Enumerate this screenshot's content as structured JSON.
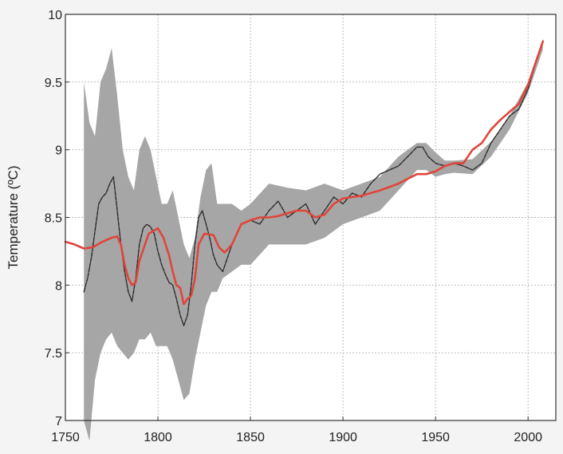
{
  "chart_data": {
    "type": "line",
    "title": "",
    "xlabel": "",
    "ylabel": "Temperature (ºC)",
    "xlim": [
      1750,
      2015
    ],
    "ylim": [
      7,
      10
    ],
    "xticks": [
      1750,
      1800,
      1850,
      1900,
      1950,
      2000
    ],
    "yticks": [
      7,
      7.5,
      8,
      8.5,
      9,
      9.5,
      10
    ],
    "xtick_labels": [
      "1750",
      "1800",
      "1850",
      "1900",
      "1950",
      "2000"
    ],
    "ytick_labels": [
      "7",
      "7.5",
      "8",
      "8.5",
      "9",
      "9.5",
      "10"
    ],
    "grid": true,
    "legend": "none",
    "colors": {
      "band": "#a6a6a6",
      "series_black": "#2a2a2a",
      "series_red": "#e0453a",
      "background": "#ffffff",
      "page": "#f4f4f4"
    },
    "uncertainty_band": {
      "x": [
        1760,
        1763,
        1766,
        1769,
        1772,
        1775,
        1778,
        1781,
        1784,
        1787,
        1790,
        1793,
        1796,
        1799,
        1802,
        1805,
        1808,
        1811,
        1814,
        1817,
        1820,
        1823,
        1826,
        1829,
        1832,
        1835,
        1840,
        1845,
        1850,
        1860,
        1870,
        1880,
        1890,
        1900,
        1910,
        1920,
        1930,
        1940,
        1945,
        1950,
        1955,
        1960,
        1970,
        1980,
        1990,
        2000,
        2005,
        2008
      ],
      "upper": [
        9.5,
        9.2,
        9.1,
        9.5,
        9.6,
        9.75,
        9.4,
        9.0,
        8.8,
        8.7,
        9.0,
        9.1,
        9.0,
        8.8,
        8.6,
        8.6,
        8.7,
        8.5,
        8.3,
        8.2,
        8.35,
        8.65,
        8.85,
        8.9,
        8.6,
        8.6,
        8.6,
        8.55,
        8.6,
        8.75,
        8.72,
        8.7,
        8.75,
        8.7,
        8.75,
        8.8,
        8.95,
        9.05,
        9.05,
        8.98,
        8.92,
        8.92,
        8.93,
        9.06,
        9.25,
        9.5,
        9.7,
        9.82
      ],
      "lower": [
        7.0,
        6.85,
        7.3,
        7.5,
        7.6,
        7.65,
        7.55,
        7.5,
        7.45,
        7.5,
        7.6,
        7.6,
        7.65,
        7.55,
        7.55,
        7.55,
        7.45,
        7.3,
        7.15,
        7.2,
        7.45,
        7.65,
        7.85,
        7.95,
        7.95,
        8.05,
        8.1,
        8.15,
        8.15,
        8.3,
        8.3,
        8.3,
        8.35,
        8.45,
        8.5,
        8.55,
        8.7,
        8.85,
        8.85,
        8.8,
        8.82,
        8.83,
        8.82,
        8.95,
        9.15,
        9.42,
        9.62,
        9.74
      ]
    },
    "series": [
      {
        "color": "#2a2a2a",
        "x": [
          1760,
          1762,
          1764,
          1766,
          1768,
          1770,
          1772,
          1774,
          1776,
          1778,
          1780,
          1782,
          1784,
          1786,
          1788,
          1790,
          1792,
          1794,
          1796,
          1798,
          1800,
          1802,
          1804,
          1806,
          1808,
          1810,
          1812,
          1814,
          1816,
          1818,
          1820,
          1822,
          1824,
          1826,
          1828,
          1830,
          1832,
          1835,
          1840,
          1845,
          1850,
          1855,
          1860,
          1865,
          1870,
          1875,
          1880,
          1885,
          1890,
          1895,
          1900,
          1905,
          1910,
          1915,
          1920,
          1925,
          1930,
          1935,
          1940,
          1943,
          1946,
          1950,
          1955,
          1960,
          1965,
          1970,
          1975,
          1980,
          1985,
          1990,
          1995,
          2000,
          2005,
          2008
        ],
        "y": [
          7.95,
          8.05,
          8.2,
          8.4,
          8.6,
          8.65,
          8.68,
          8.75,
          8.8,
          8.55,
          8.3,
          8.1,
          7.95,
          7.88,
          8.05,
          8.3,
          8.42,
          8.45,
          8.43,
          8.38,
          8.25,
          8.15,
          8.08,
          8.02,
          8.0,
          7.9,
          7.78,
          7.7,
          7.78,
          8.0,
          8.3,
          8.5,
          8.55,
          8.45,
          8.35,
          8.22,
          8.15,
          8.1,
          8.3,
          8.45,
          8.48,
          8.45,
          8.55,
          8.62,
          8.5,
          8.55,
          8.6,
          8.45,
          8.55,
          8.65,
          8.6,
          8.68,
          8.65,
          8.75,
          8.82,
          8.85,
          8.88,
          8.95,
          9.02,
          9.02,
          8.95,
          8.9,
          8.88,
          8.9,
          8.88,
          8.85,
          8.9,
          9.05,
          9.15,
          9.25,
          9.3,
          9.45,
          9.68,
          9.8
        ]
      },
      {
        "color": "#e0453a",
        "x": [
          1750,
          1755,
          1760,
          1765,
          1770,
          1775,
          1778,
          1780,
          1782,
          1784,
          1786,
          1788,
          1790,
          1795,
          1800,
          1803,
          1806,
          1808,
          1810,
          1812,
          1814,
          1816,
          1818,
          1820,
          1822,
          1825,
          1830,
          1833,
          1836,
          1840,
          1845,
          1850,
          1855,
          1860,
          1865,
          1870,
          1875,
          1880,
          1885,
          1890,
          1895,
          1900,
          1910,
          1920,
          1930,
          1940,
          1945,
          1950,
          1955,
          1960,
          1965,
          1970,
          1975,
          1980,
          1985,
          1990,
          1995,
          2000,
          2005,
          2008
        ],
        "y": [
          8.32,
          8.3,
          8.27,
          8.28,
          8.32,
          8.35,
          8.36,
          8.3,
          8.15,
          8.05,
          8.0,
          8.02,
          8.18,
          8.38,
          8.42,
          8.35,
          8.22,
          8.1,
          8.0,
          7.98,
          7.86,
          7.9,
          7.92,
          8.05,
          8.3,
          8.38,
          8.37,
          8.28,
          8.24,
          8.3,
          8.45,
          8.48,
          8.5,
          8.5,
          8.51,
          8.53,
          8.55,
          8.55,
          8.5,
          8.52,
          8.6,
          8.64,
          8.66,
          8.7,
          8.75,
          8.82,
          8.82,
          8.84,
          8.88,
          8.9,
          8.9,
          9.0,
          9.05,
          9.15,
          9.22,
          9.28,
          9.34,
          9.48,
          9.68,
          9.8
        ]
      }
    ]
  }
}
